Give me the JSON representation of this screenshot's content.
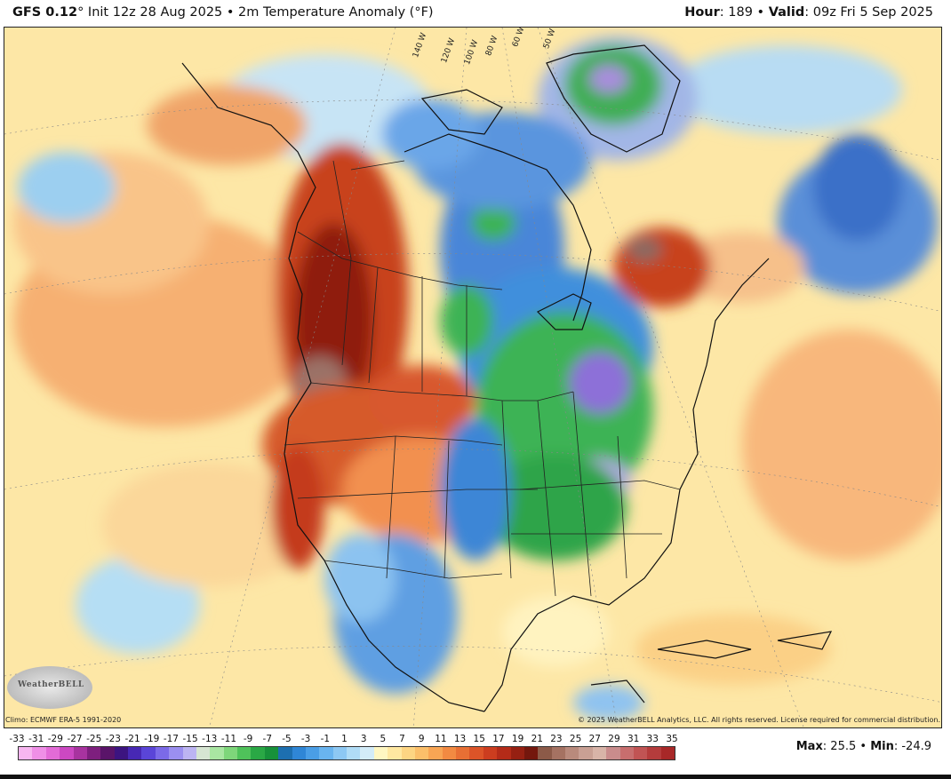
{
  "header": {
    "model": "GFS 0.12",
    "init_text": "° Init 12z 28 Aug 2025 • 2m Temperature Anomaly (°F)",
    "hour_label": "Hour",
    "hour_value": ": 189 • ",
    "valid_label": "Valid",
    "valid_value": ": 09z Fri 5 Sep 2025"
  },
  "map": {
    "longitude_labels": [
      "140 W",
      "120 W",
      "100 W",
      "80 W",
      "60 W",
      "50 W"
    ],
    "logo_text": "WeatherBELL",
    "climo_text": "Climo: ECMWF ERA-5 1991-2020",
    "copyright_text": "© 2025 WeatherBELL Analytics, LLC. All rights reserved. License required for commercial distribution."
  },
  "colorbar": {
    "ticks": [
      "-33",
      "-31",
      "-29",
      "-27",
      "-25",
      "-23",
      "-21",
      "-19",
      "-17",
      "-15",
      "-13",
      "-11",
      "-9",
      "-7",
      "-5",
      "-3",
      "-1",
      "1",
      "3",
      "5",
      "7",
      "9",
      "11",
      "13",
      "15",
      "17",
      "19",
      "21",
      "23",
      "25",
      "27",
      "29",
      "31",
      "33",
      "35"
    ],
    "colors": [
      "#f7b6f0",
      "#ef8fe6",
      "#e36bd7",
      "#cc48c2",
      "#a8339f",
      "#7e1f7e",
      "#5a1469",
      "#3c1480",
      "#4728b4",
      "#5a45d8",
      "#7b6ae8",
      "#9b8ff0",
      "#bcb4f2",
      "#d6e5d2",
      "#a9e6a2",
      "#7ed67a",
      "#4fc25a",
      "#2aa845",
      "#17913a",
      "#1d6fb0",
      "#2f86d6",
      "#4a9ee6",
      "#69b4ef",
      "#8dc8f3",
      "#b0dcf6",
      "#d3ecf8",
      "#fff7c2",
      "#ffe8a1",
      "#fdd583",
      "#fbbf6a",
      "#f8a554",
      "#f28a42",
      "#e86f34",
      "#dc5428",
      "#cc3d1f",
      "#b42b18",
      "#962012",
      "#74170d",
      "#8c5a48",
      "#a57262",
      "#b98a7c",
      "#c9a094",
      "#d8b4a8",
      "#c98c8c",
      "#c86e6e",
      "#c15454",
      "#b53c3c",
      "#a82828"
    ]
  },
  "stats": {
    "max_label": "Max",
    "max_value": ": 25.5 • ",
    "min_label": "Min",
    "min_value": ": -24.9"
  }
}
